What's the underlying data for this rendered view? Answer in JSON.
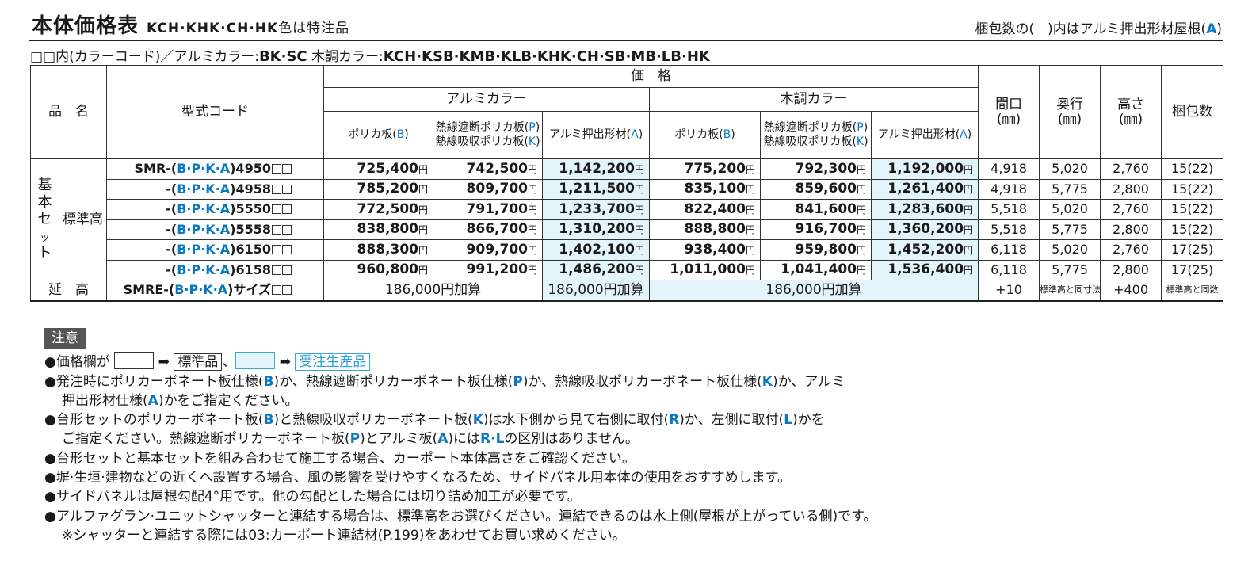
{
  "header": {
    "title": "本体価格表",
    "title_models": "KCH·KHK·CH·HK",
    "title_suffix": "色は特注品",
    "pack_note_pre": "梱包数の(　)内はアルミ押出形材屋根(",
    "pack_note_A": "A",
    "pack_note_post": ")"
  },
  "color_line": {
    "prefix": "□□内(カラーコード)／アルミカラー:",
    "alu_colors": "BK·SC",
    "wood_label": "木調カラー:",
    "wood_colors": "KCH·KSB·KMB·KLB·KHK·CH·SB·MB·LB·HK"
  },
  "table": {
    "head": {
      "product_name": "品　名",
      "model_code": "型式コード",
      "price": "価　格",
      "alu_color": "アルミカラー",
      "wood_color": "木調カラー",
      "width": "間口",
      "depth": "奥行",
      "height": "高さ",
      "unit_mm": "(㎜)",
      "packages": "梱包数",
      "poly_pre": "ポリカ板(",
      "poly_B": "B",
      "heat_block_pre": "熱線遮断ポリカ板(",
      "heat_P": "P",
      "heat_absorb_pre": "熱線吸収ポリカ板(",
      "heat_K": "K",
      "alu_pre": "アルミ押出形材(",
      "alu_A": "A",
      "close": ")"
    },
    "group_label": "基本セット",
    "standard_height": "標準高",
    "extension": "延　高",
    "yen": "円",
    "code_open": "(",
    "code_mid": "B·P·K·A",
    "code_close": ")",
    "rows": [
      {
        "prefix": "SMR-",
        "size": "4950",
        "p1": "725,400",
        "p2": "742,500",
        "p3": "1,142,200",
        "p4": "775,200",
        "p5": "792,300",
        "p6": "1,192,000",
        "width": "4,918",
        "depth": "5,020",
        "height": "2,760",
        "packs": "15(22)"
      },
      {
        "prefix": "-",
        "size": "4958",
        "p1": "785,200",
        "p2": "809,700",
        "p3": "1,211,500",
        "p4": "835,100",
        "p5": "859,600",
        "p6": "1,261,400",
        "width": "4,918",
        "depth": "5,775",
        "height": "2,800",
        "packs": "15(22)"
      },
      {
        "prefix": "-",
        "size": "5550",
        "p1": "772,500",
        "p2": "791,700",
        "p3": "1,233,700",
        "p4": "822,400",
        "p5": "841,600",
        "p6": "1,283,600",
        "width": "5,518",
        "depth": "5,020",
        "height": "2,760",
        "packs": "15(22)"
      },
      {
        "prefix": "-",
        "size": "5558",
        "p1": "838,800",
        "p2": "866,700",
        "p3": "1,310,200",
        "p4": "888,800",
        "p5": "916,700",
        "p6": "1,360,200",
        "width": "5,518",
        "depth": "5,775",
        "height": "2,800",
        "packs": "15(22)"
      },
      {
        "prefix": "-",
        "size": "6150",
        "p1": "888,300",
        "p2": "909,700",
        "p3": "1,402,100",
        "p4": "938,400",
        "p5": "959,800",
        "p6": "1,452,200",
        "width": "6,118",
        "depth": "5,020",
        "height": "2,760",
        "packs": "17(25)"
      },
      {
        "prefix": "-",
        "size": "6158",
        "p1": "960,800",
        "p2": "991,200",
        "p3": "1,486,200",
        "p4": "1,011,000",
        "p5": "1,041,400",
        "p6": "1,536,400",
        "width": "6,118",
        "depth": "5,775",
        "height": "2,800",
        "packs": "17(25)"
      }
    ],
    "ext_row": {
      "prefix": "SMRE-",
      "size": "サイズ",
      "alu_add_a": "186,000円加算",
      "alu_add_b": "186,000円加算",
      "wood_add": "186,000円加算",
      "width": "+10",
      "depth": "標準高と同寸法",
      "height": "+400",
      "packs": "標準高と同数"
    }
  },
  "notes": {
    "tag": "注意",
    "legend_pre": "●価格欄が",
    "legend_std": "標準品",
    "legend_comma": "、",
    "legend_order": "受注生産品",
    "arrow": "➡",
    "lines": [
      "●発注時にポリカーボネート板仕様(B)か、熱線遮断ポリカーボネート板仕様(P)か、熱線吸収ポリカーボネート板仕様(K)か、アルミ",
      "押出形材仕様(A)かをご指定ください。",
      "●台形セットのポリカーボネート板(B)と熱線吸収ポリカーボネート板(K)は水下側から見て右側に取付(R)か、左側に取付(L)かを",
      "ご指定ください。熱線遮断ポリカーボネート板(P)とアルミ板(A)にはR·Lの区別はありません。",
      "●台形セットと基本セットを組み合わせて施工する場合、カーポート本体高さをご確認ください。",
      "●塀·生垣·建物などの近くへ設置する場合、風の影響を受けやすくなるため、サイドパネル用本体の使用をおすすめします。",
      "●サイドパネルは屋根勾配4°用です。他の勾配とした場合には切り詰め加工が必要です。",
      "●アルファグラン·ユニットシャッターと連結する場合は、標準高をお選びください。連結できるのは水上側(屋根が上がっている側)です。",
      "※シャッターと連結する際には03:カーポート連結材(P.199)をあわせてお買い求めください。"
    ]
  },
  "colors": {
    "accent_blue": "#0a78c0",
    "cyan_fill": "#e3f4fb",
    "note_tag_bg": "#555555"
  }
}
